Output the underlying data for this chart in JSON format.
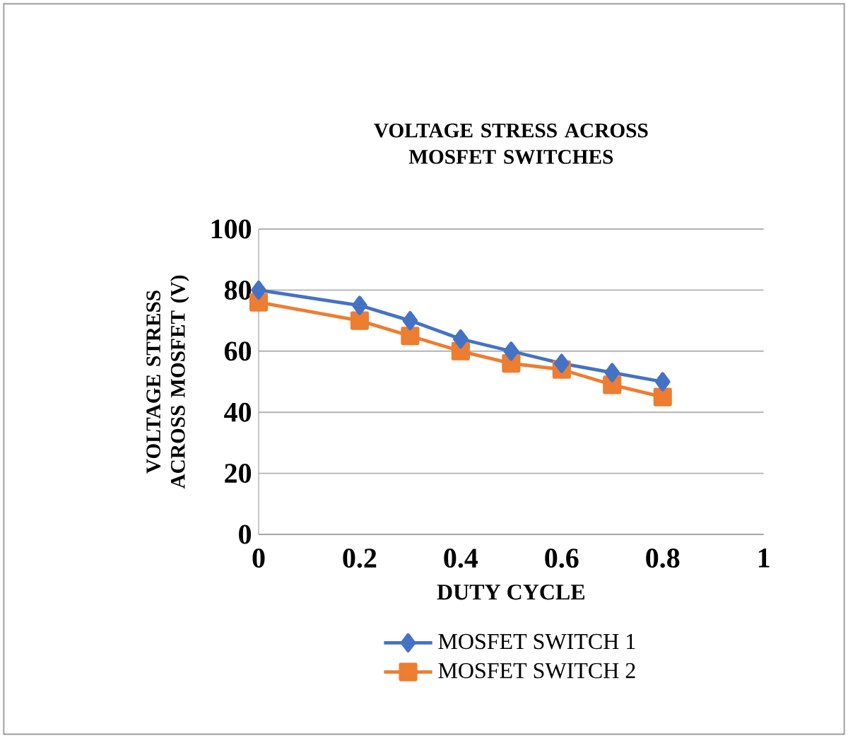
{
  "chart_data": {
    "type": "line",
    "title": "VOLTAGE STRESS ACROSS MOSFET SWITCHES",
    "xlabel": "DUTY CYCLE",
    "ylabel": "VOLTAGE STRESS ACROSS MOSFET (V)",
    "x": [
      0,
      0.2,
      0.3,
      0.4,
      0.5,
      0.6,
      0.7,
      0.8
    ],
    "series": [
      {
        "name": "MOSFET SWITCH 1",
        "color": "#4472c4",
        "marker": "diamond",
        "values": [
          80,
          75,
          70,
          64,
          60,
          56,
          53,
          50
        ]
      },
      {
        "name": "MOSFET SWITCH 2",
        "color": "#ed7d31",
        "marker": "square",
        "values": [
          76,
          70,
          65,
          60,
          56,
          54,
          49,
          45
        ]
      }
    ],
    "xlim": [
      0,
      1
    ],
    "xticks": [
      0,
      0.2,
      0.4,
      0.6,
      0.8,
      1
    ],
    "ylim": [
      0,
      100
    ],
    "yticks": [
      0,
      20,
      40,
      60,
      80,
      100
    ],
    "grid": "y",
    "legend": "bottom",
    "line_style": "solid"
  }
}
